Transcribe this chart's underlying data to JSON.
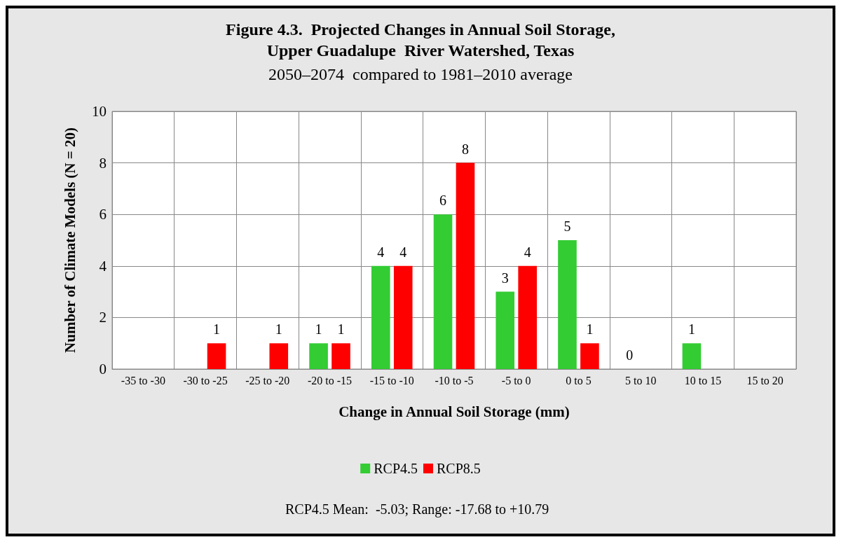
{
  "chart_data": {
    "type": "bar",
    "title": "Figure 4.3.  Projected Changes in Annual Soil Storage,\nUpper Guadalupe  River Watershed, Texas",
    "subtitle": "2050–2074  compared to 1981–2010 average",
    "xlabel": "Change in Annual Soil Storage (mm)",
    "ylabel": "Number of Climate Models (N = 20)",
    "categories": [
      "-35 to -30",
      "-30 to -25",
      "-25 to -20",
      "-20 to -15",
      "-15 to -10",
      "-10 to -5",
      "-5 to 0",
      "0 to 5",
      "5 to 10",
      "10 to 15",
      "15 to 20"
    ],
    "series": [
      {
        "name": "RCP4.5",
        "color": "#33cc33",
        "values": [
          null,
          null,
          null,
          1,
          4,
          6,
          3,
          5,
          0,
          1,
          null
        ]
      },
      {
        "name": "RCP8.5",
        "color": "#ff0000",
        "values": [
          null,
          1,
          1,
          1,
          4,
          8,
          4,
          1,
          null,
          null,
          null
        ]
      }
    ],
    "ylim": [
      0,
      10
    ],
    "yticks": [
      0,
      2,
      4,
      6,
      8,
      10
    ],
    "grid": true,
    "legend": "bottom",
    "data_labels": true,
    "annotations": [
      "RCP4.5 Mean:  -5.03; Range: -17.68 to +10.79"
    ]
  }
}
